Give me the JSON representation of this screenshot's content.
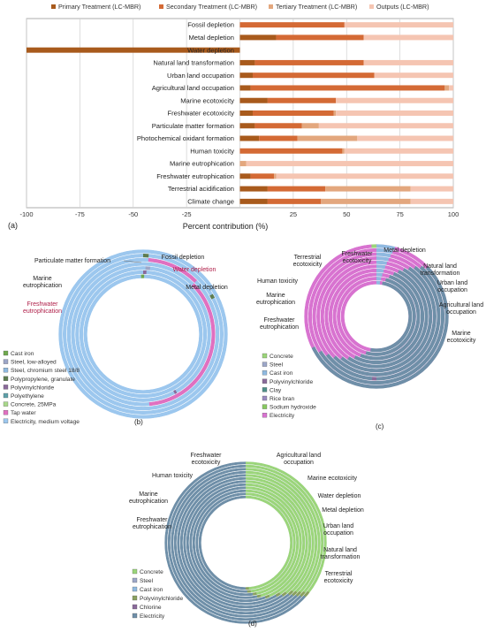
{
  "chart_data": [
    {
      "type": "bar",
      "panel": "(a)",
      "orientation": "horizontal-stacked",
      "legend_position": "top",
      "series": [
        {
          "name": "Primary Treatment (LC-MBR)",
          "color": "#a85a1c"
        },
        {
          "name": "Secondary Treatment (LC-MBR)",
          "color": "#d46a35"
        },
        {
          "name": "Tertiary Treatment (LC-MBR)",
          "color": "#e3a77e"
        },
        {
          "name": "Outputs (LC-MBR)",
          "color": "#f5c5b2"
        }
      ],
      "categories": [
        "Fossil depletion",
        "Metal depletion",
        "Water depletion",
        "Natural land transformation",
        "Urban land occupation",
        "Agricultural land occupation",
        "Marine ecotoxicity",
        "Freshwater ecotoxicity",
        "Particulate matter formation",
        "Photochemical oxidant formation",
        "Human toxicity",
        "Marine eutrophication",
        "Freshwater eutrophication",
        "Terrestrial acidification",
        "Climate change"
      ],
      "values": [
        [
          0,
          49,
          0,
          51
        ],
        [
          17,
          41,
          0,
          42
        ],
        [
          -100,
          0,
          0,
          0
        ],
        [
          7,
          51,
          0,
          42
        ],
        [
          6,
          57,
          0,
          37
        ],
        [
          5,
          91,
          2,
          2
        ],
        [
          13,
          32,
          0,
          55
        ],
        [
          6,
          38,
          1,
          55
        ],
        [
          7,
          22,
          8,
          63
        ],
        [
          9,
          18,
          28,
          45
        ],
        [
          0,
          48,
          1,
          51
        ],
        [
          0,
          0,
          3,
          97
        ],
        [
          5,
          11,
          1,
          83
        ],
        [
          13,
          27,
          40,
          20
        ],
        [
          13,
          25,
          42,
          20
        ]
      ],
      "xlim": [
        -100,
        100
      ],
      "xticks": [
        "-100",
        "-75",
        "-50",
        "-25",
        "",
        "25",
        "50",
        "75",
        "100"
      ],
      "xlabel": "Percent contribution (%)",
      "grid": true
    },
    {
      "type": "pie",
      "style": "multi-ring donut",
      "panel": "(b)",
      "rings": [
        "Particulate matter formation",
        "Fossil depletion",
        "Water depletion",
        "Metal depletion",
        "Marine eutrophication",
        "Freshwater eutrophication"
      ],
      "legend": [
        {
          "name": "Cast iron",
          "color": "#6fa84e"
        },
        {
          "name": "Steel, low-alloyed",
          "color": "#9ca6c8"
        },
        {
          "name": "Steel, chromium steel 18/8",
          "color": "#8fb9e0"
        },
        {
          "name": "Polypropylene, granulate",
          "color": "#5e7d50"
        },
        {
          "name": "Polyvinylchloride",
          "color": "#8a6a9a"
        },
        {
          "name": "Polyethylene",
          "color": "#5ea0a8"
        },
        {
          "name": "Concrete, 25MPa",
          "color": "#a8d88a"
        },
        {
          "name": "Tap water",
          "color": "#e070c0"
        },
        {
          "name": "Electricity, medium voltage",
          "color": "#9cc7ee"
        }
      ]
    },
    {
      "type": "pie",
      "style": "multi-ring donut",
      "panel": "(c)",
      "rings": [
        "Terrestrial ecotoxicity",
        "Freshwater ecotoxicity",
        "Metal depletion",
        "Natural land transformation",
        "Human toxicity",
        "Urban land occupation",
        "Marine eutrophication",
        "Agricultural land occupation",
        "Freshwater eutrophication",
        "Marine ecotoxicity"
      ],
      "legend": [
        {
          "name": "Concrete",
          "color": "#9bd57a"
        },
        {
          "name": "Steel",
          "color": "#9ca6c8"
        },
        {
          "name": "Cast iron",
          "color": "#8fb9e0"
        },
        {
          "name": "Polyvinylchloride",
          "color": "#8a6a9a"
        },
        {
          "name": "Clay",
          "color": "#4e8f88"
        },
        {
          "name": "Rice bran",
          "color": "#9a8ac0"
        },
        {
          "name": "Sodium hydroxide",
          "color": "#88c860"
        },
        {
          "name": "Electricity",
          "color": "#d873d0"
        }
      ]
    },
    {
      "type": "pie",
      "style": "multi-ring donut",
      "panel": "(d)",
      "rings": [
        "Freshwater ecotoxicity",
        "Agricultural land occupation",
        "Human toxicity",
        "Marine ecotoxicity",
        "Marine eutrophication",
        "Water depletion",
        "Metal depletion",
        "Freshwater eutrophication",
        "Urban land occupation",
        "Natural land transformation",
        "Terrestrial ecotoxicity"
      ],
      "legend": [
        {
          "name": "Concrete",
          "color": "#9bd57a"
        },
        {
          "name": "Steel",
          "color": "#9ca6c8"
        },
        {
          "name": "Cast iron",
          "color": "#8fb9e0"
        },
        {
          "name": "Polyvinylchloride",
          "color": "#8aa060"
        },
        {
          "name": "Chlorine",
          "color": "#8a6a9a"
        },
        {
          "name": "Electricity",
          "color": "#6f8fa8"
        }
      ]
    }
  ]
}
